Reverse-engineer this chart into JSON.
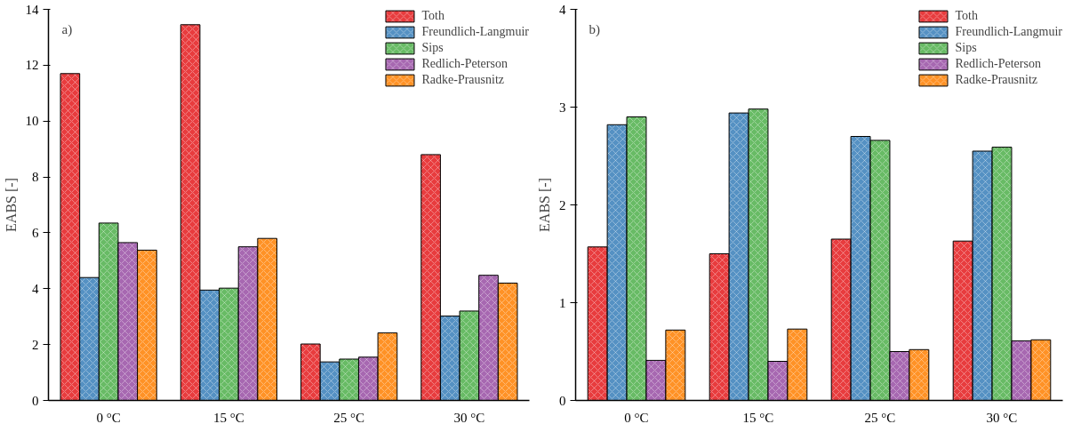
{
  "chart_data": [
    {
      "type": "bar",
      "ylabel": "EABS [-]",
      "annotations": [
        "a)"
      ],
      "categories": [
        "0 °C",
        "15 °C",
        "25 °C",
        "30 °C"
      ],
      "ylim": [
        0,
        14
      ],
      "yticks": [
        0,
        2,
        4,
        6,
        8,
        10,
        12,
        14
      ],
      "grid": false,
      "legend": "top right",
      "series": [
        {
          "name": "Toth",
          "color": "#e41a1c",
          "values": [
            11.7,
            13.45,
            2.02,
            8.8
          ]
        },
        {
          "name": "Freundlich-Langmuir",
          "color": "#377eb8",
          "values": [
            4.4,
            3.95,
            1.38,
            3.02
          ]
        },
        {
          "name": "Sips",
          "color": "#4daf4a",
          "values": [
            6.35,
            4.02,
            1.48,
            3.2
          ]
        },
        {
          "name": "Redlich-Peterson",
          "color": "#984ea3",
          "values": [
            5.65,
            5.5,
            1.55,
            4.48
          ]
        },
        {
          "name": "Radke-Prausnitz",
          "color": "#ff7f00",
          "values": [
            5.38,
            5.8,
            2.42,
            4.2
          ]
        }
      ]
    },
    {
      "type": "bar",
      "ylabel": "EABS [-]",
      "annotations": [
        "b)"
      ],
      "categories": [
        "0 °C",
        "15 °C",
        "25 °C",
        "30 °C"
      ],
      "ylim": [
        0,
        4
      ],
      "yticks": [
        0,
        1,
        2,
        3,
        4
      ],
      "grid": false,
      "legend": "top right",
      "series": [
        {
          "name": "Toth",
          "color": "#e41a1c",
          "values": [
            1.57,
            1.5,
            1.65,
            1.63
          ]
        },
        {
          "name": "Freundlich-Langmuir",
          "color": "#377eb8",
          "values": [
            2.82,
            2.94,
            2.7,
            2.55
          ]
        },
        {
          "name": "Sips",
          "color": "#4daf4a",
          "values": [
            2.9,
            2.98,
            2.66,
            2.59
          ]
        },
        {
          "name": "Redlich-Peterson",
          "color": "#984ea3",
          "values": [
            0.41,
            0.4,
            0.5,
            0.61
          ]
        },
        {
          "name": "Radke-Prausnitz",
          "color": "#ff7f00",
          "values": [
            0.72,
            0.73,
            0.52,
            0.62
          ]
        }
      ]
    }
  ]
}
